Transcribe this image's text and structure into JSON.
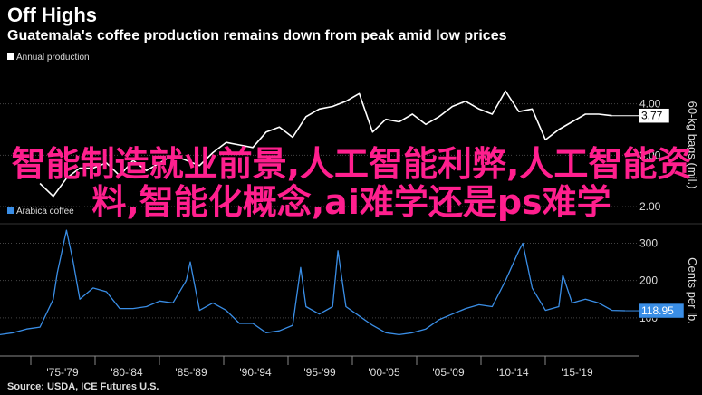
{
  "header": {
    "title": "Off Highs",
    "subtitle": "Guatemala's coffee production remains down from peak amid low prices"
  },
  "overlay_text": "智能制造就业前景,人工智能利弊,人工智能资料,智能化概念,ai难学还是ps难学",
  "source": "Source: USDA, ICE Futures U.S.",
  "colors": {
    "production": "#ffffff",
    "price": "#3a8ee6",
    "overlay": "#ff1f8e",
    "grid": "#444444"
  },
  "chart_data": [
    {
      "type": "line",
      "legend": "Annual production",
      "ylabel": "60-kg bags (mil.)",
      "yticks": [
        "2.00",
        "3.00",
        "4.00"
      ],
      "ylim": [
        1.7,
        4.7
      ],
      "last_value_label": "3.77",
      "x": [
        1975,
        1976,
        1977,
        1978,
        1979,
        1980,
        1981,
        1982,
        1983,
        1984,
        1985,
        1986,
        1987,
        1988,
        1989,
        1990,
        1991,
        1992,
        1993,
        1994,
        1995,
        1996,
        1997,
        1998,
        1999,
        2000,
        2001,
        2002,
        2003,
        2004,
        2005,
        2006,
        2007,
        2008,
        2009,
        2010,
        2011,
        2012,
        2013,
        2014,
        2015,
        2016,
        2017,
        2018
      ],
      "values": [
        2.45,
        2.2,
        2.55,
        2.75,
        2.75,
        2.85,
        2.6,
        2.9,
        2.7,
        2.85,
        3.0,
        2.9,
        2.8,
        3.05,
        3.25,
        3.2,
        3.15,
        3.45,
        3.55,
        3.35,
        3.75,
        3.9,
        3.95,
        4.05,
        4.2,
        3.45,
        3.7,
        3.65,
        3.8,
        3.6,
        3.75,
        3.95,
        4.05,
        3.9,
        3.8,
        4.25,
        3.85,
        3.9,
        3.3,
        3.5,
        3.65,
        3.8,
        3.8,
        3.77
      ]
    },
    {
      "type": "line",
      "legend": "Arabica coffee",
      "ylabel": "Cents per lb.",
      "yticks": [
        "100",
        "200",
        "300"
      ],
      "ylim": [
        0,
        345
      ],
      "last_value_label": "118.95",
      "x": [
        1972,
        1973,
        1974,
        1975,
        1976,
        1976.3,
        1977,
        1977.5,
        1978,
        1979,
        1980,
        1981,
        1982,
        1983,
        1984,
        1985,
        1986,
        1986.3,
        1987,
        1988,
        1989,
        1990,
        1991,
        1992,
        1993,
        1994,
        1994.6,
        1995,
        1996,
        1997,
        1997.4,
        1998,
        1999,
        2000,
        2001,
        2002,
        2003,
        2004,
        2005,
        2006,
        2007,
        2008,
        2009,
        2010,
        2011,
        2011.3,
        2012,
        2013,
        2014,
        2014.3,
        2015,
        2016,
        2017,
        2018,
        2019
      ],
      "values": [
        55,
        60,
        70,
        75,
        150,
        220,
        335,
        250,
        150,
        180,
        170,
        125,
        125,
        130,
        145,
        140,
        200,
        250,
        120,
        140,
        120,
        85,
        85,
        60,
        65,
        80,
        235,
        130,
        110,
        130,
        280,
        130,
        105,
        80,
        60,
        55,
        60,
        70,
        95,
        110,
        125,
        135,
        130,
        200,
        280,
        300,
        180,
        120,
        130,
        215,
        140,
        150,
        140,
        120,
        118.95
      ]
    }
  ],
  "x_axis": {
    "ticks": [
      "'75-'79",
      "'80-'84",
      "'85-'89",
      "'90-'94",
      "'95-'99",
      "'00-'05",
      "'05-'09",
      "'10-'14",
      "'15-'19"
    ]
  }
}
